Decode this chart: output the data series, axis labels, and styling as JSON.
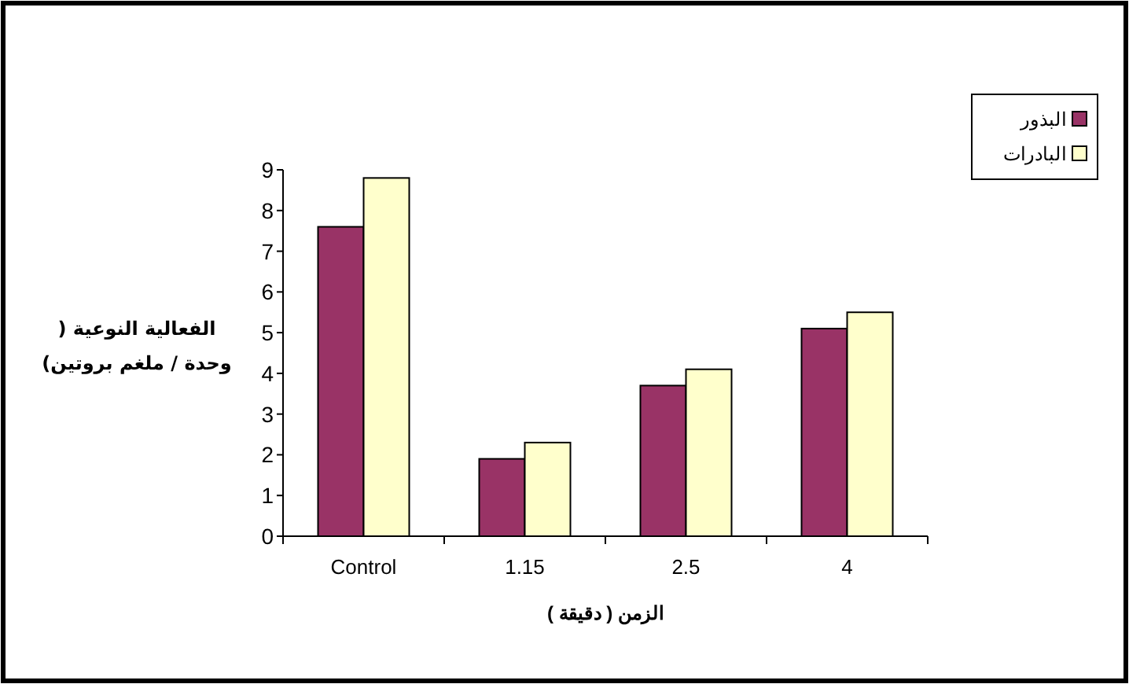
{
  "chart_data": {
    "type": "bar",
    "xlabel": "الزمن ( دقيقة )",
    "ylabel": "الفعالية النوعية ( وحدة / ملغم بروتين)",
    "categories": [
      "Control",
      "1.15",
      "2.5",
      "4"
    ],
    "series": [
      {
        "name": "البذور",
        "color": "#993366",
        "values": [
          7.6,
          1.9,
          3.7,
          5.1
        ]
      },
      {
        "name": "البادرات",
        "color": "#ffffcc",
        "values": [
          8.8,
          2.3,
          4.1,
          5.5
        ]
      }
    ],
    "ylim": [
      0,
      9
    ],
    "yticks": [
      0,
      1,
      2,
      3,
      4,
      5,
      6,
      7,
      8,
      9
    ],
    "grid": false,
    "legend": "top right"
  }
}
